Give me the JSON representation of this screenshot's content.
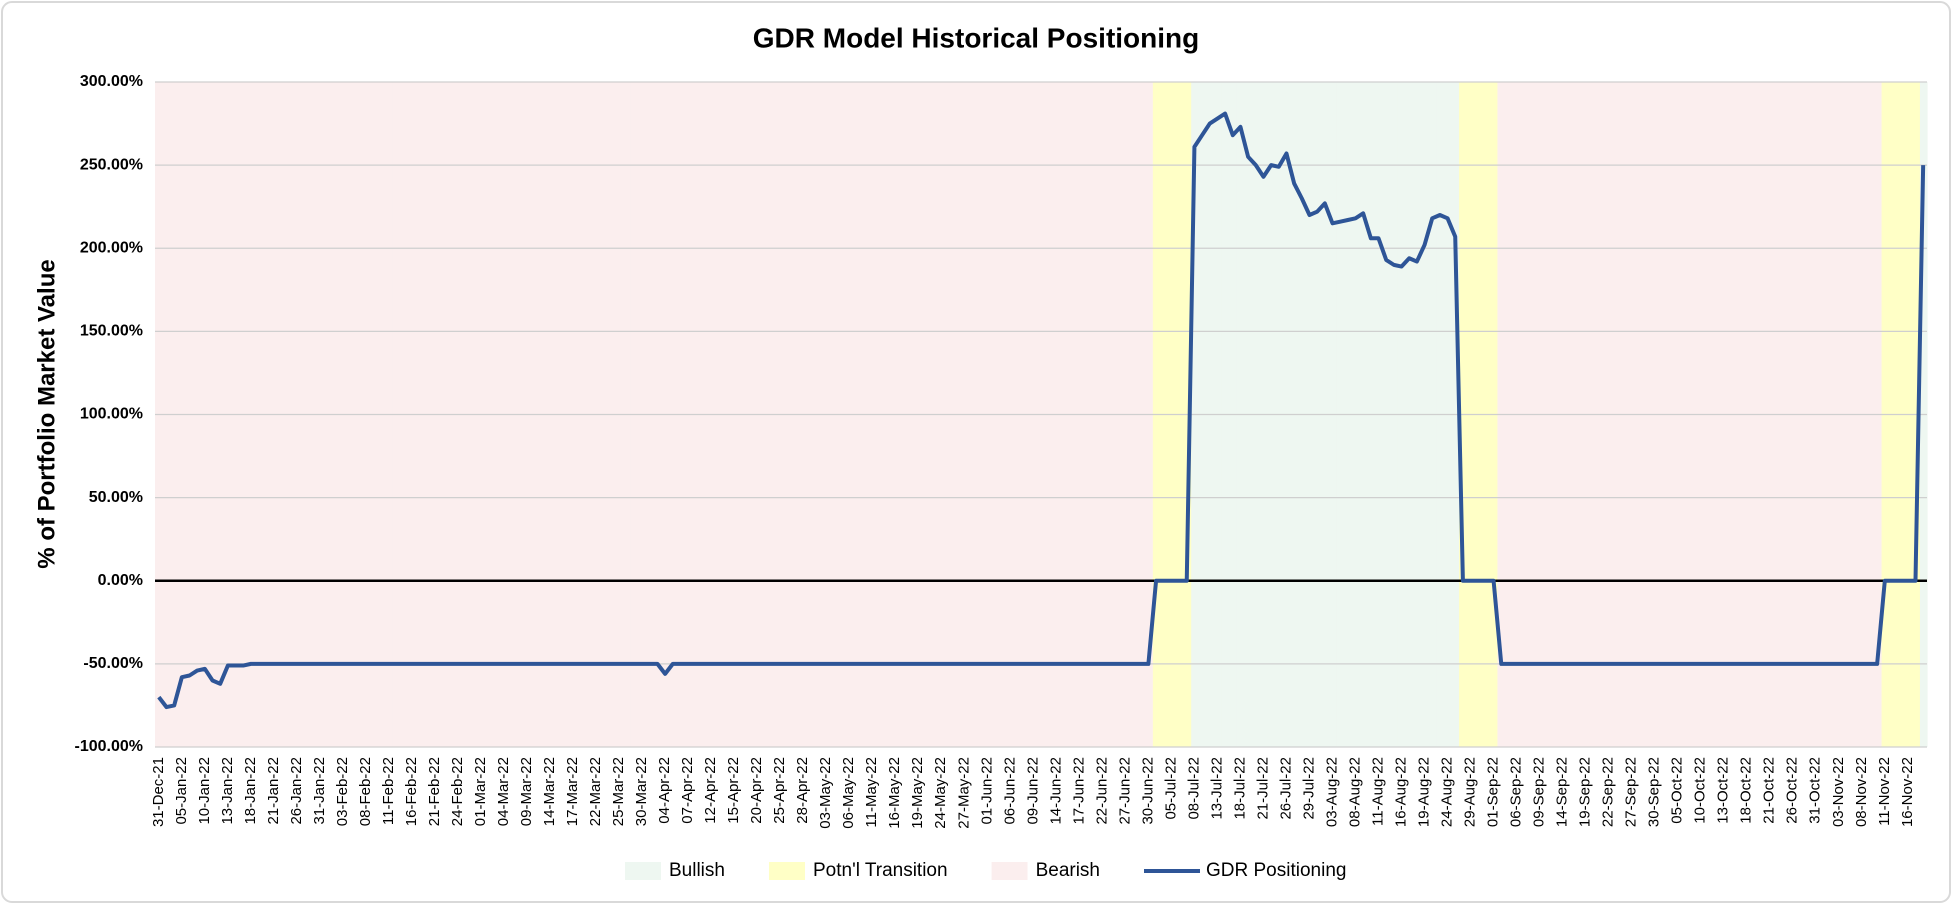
{
  "chart_data": {
    "type": "combo",
    "title": "GDR Model Historical Positioning",
    "y_label": "% of Portfolio Market Value",
    "ylim": [
      -100,
      300
    ],
    "yticks": [
      {
        "value": -100,
        "label": "-100.00%"
      },
      {
        "value": -50,
        "label": "-50.00%"
      },
      {
        "value": 0,
        "label": "0.00%"
      },
      {
        "value": 50,
        "label": "50.00%"
      },
      {
        "value": 100,
        "label": "100.00%"
      },
      {
        "value": 150,
        "label": "150.00%"
      },
      {
        "value": 200,
        "label": "200.00%"
      },
      {
        "value": 250,
        "label": "250.00%"
      },
      {
        "value": 300,
        "label": "300.00%"
      }
    ],
    "grid": true,
    "legend": "bottom",
    "categories": [
      "31-Dec-21",
      null,
      null,
      "05-Jan-22",
      null,
      null,
      "10-Jan-22",
      null,
      null,
      "13-Jan-22",
      null,
      null,
      "18-Jan-22",
      null,
      null,
      "21-Jan-22",
      null,
      null,
      "26-Jan-22",
      null,
      null,
      "31-Jan-22",
      null,
      null,
      "03-Feb-22",
      null,
      null,
      "08-Feb-22",
      null,
      null,
      "11-Feb-22",
      null,
      null,
      "16-Feb-22",
      null,
      null,
      "21-Feb-22",
      null,
      null,
      "24-Feb-22",
      null,
      null,
      "01-Mar-22",
      null,
      null,
      "04-Mar-22",
      null,
      null,
      "09-Mar-22",
      null,
      null,
      "14-Mar-22",
      null,
      null,
      "17-Mar-22",
      null,
      null,
      "22-Mar-22",
      null,
      null,
      "25-Mar-22",
      null,
      null,
      "30-Mar-22",
      null,
      null,
      "04-Apr-22",
      null,
      null,
      "07-Apr-22",
      null,
      null,
      "12-Apr-22",
      null,
      null,
      "15-Apr-22",
      null,
      null,
      "20-Apr-22",
      null,
      null,
      "25-Apr-22",
      null,
      null,
      "28-Apr-22",
      null,
      null,
      "03-May-22",
      null,
      null,
      "06-May-22",
      null,
      null,
      "11-May-22",
      null,
      null,
      "16-May-22",
      null,
      null,
      "19-May-22",
      null,
      null,
      "24-May-22",
      null,
      null,
      "27-May-22",
      null,
      null,
      "01-Jun-22",
      null,
      null,
      "06-Jun-22",
      null,
      null,
      "09-Jun-22",
      null,
      null,
      "14-Jun-22",
      null,
      null,
      "17-Jun-22",
      null,
      null,
      "22-Jun-22",
      null,
      null,
      "27-Jun-22",
      null,
      null,
      "30-Jun-22",
      null,
      null,
      "05-Jul-22",
      null,
      null,
      "08-Jul-22",
      null,
      null,
      "13-Jul-22",
      null,
      null,
      "18-Jul-22",
      null,
      null,
      "21-Jul-22",
      null,
      null,
      "26-Jul-22",
      null,
      null,
      "29-Jul-22",
      null,
      null,
      "03-Aug-22",
      null,
      null,
      "08-Aug-22",
      null,
      null,
      "11-Aug-22",
      null,
      null,
      "16-Aug-22",
      null,
      null,
      "19-Aug-22",
      null,
      null,
      "24-Aug-22",
      null,
      null,
      "29-Aug-22",
      null,
      null,
      "01-Sep-22",
      null,
      null,
      "06-Sep-22",
      null,
      null,
      "09-Sep-22",
      null,
      null,
      "14-Sep-22",
      null,
      null,
      "19-Sep-22",
      null,
      null,
      "22-Sep-22",
      null,
      null,
      "27-Sep-22",
      null,
      null,
      "30-Sep-22",
      null,
      null,
      "05-Oct-22",
      null,
      null,
      "10-Oct-22",
      null,
      null,
      "13-Oct-22",
      null,
      null,
      "18-Oct-22",
      null,
      null,
      "21-Oct-22",
      null,
      null,
      "26-Oct-22",
      null,
      null,
      "31-Oct-22",
      null,
      null,
      "03-Nov-22",
      null,
      null,
      "08-Nov-22",
      null,
      null,
      "11-Nov-22",
      null,
      null,
      "16-Nov-22",
      null,
      null
    ],
    "series": [
      {
        "name": "Bullish",
        "type": "column",
        "color": "#eef7f1",
        "values": [
          null,
          null,
          null,
          null,
          null,
          null,
          null,
          null,
          null,
          null,
          null,
          null,
          null,
          null,
          null,
          null,
          null,
          null,
          null,
          null,
          null,
          null,
          null,
          null,
          null,
          null,
          null,
          null,
          null,
          null,
          null,
          null,
          null,
          null,
          null,
          null,
          null,
          null,
          null,
          null,
          null,
          null,
          null,
          null,
          null,
          null,
          null,
          null,
          null,
          null,
          null,
          null,
          null,
          null,
          null,
          null,
          null,
          null,
          null,
          null,
          null,
          null,
          null,
          null,
          null,
          null,
          null,
          null,
          null,
          null,
          null,
          null,
          null,
          null,
          null,
          null,
          null,
          null,
          null,
          null,
          null,
          null,
          null,
          null,
          null,
          null,
          null,
          null,
          null,
          null,
          null,
          null,
          null,
          null,
          null,
          null,
          null,
          null,
          null,
          null,
          null,
          null,
          null,
          null,
          null,
          null,
          null,
          null,
          null,
          null,
          null,
          null,
          null,
          null,
          null,
          null,
          null,
          null,
          null,
          null,
          null,
          null,
          null,
          null,
          null,
          null,
          null,
          null,
          null,
          null,
          null,
          null,
          null,
          null,
          null,
          300,
          300,
          300,
          300,
          300,
          300,
          300,
          300,
          300,
          300,
          300,
          300,
          300,
          300,
          300,
          300,
          300,
          300,
          300,
          300,
          300,
          300,
          300,
          300,
          300,
          300,
          300,
          300,
          300,
          300,
          300,
          300,
          300,
          300,
          300,
          null,
          null,
          null,
          null,
          null,
          null,
          null,
          null,
          null,
          null,
          null,
          null,
          null,
          null,
          null,
          null,
          null,
          null,
          null,
          null,
          null,
          null,
          null,
          null,
          null,
          null,
          null,
          null,
          null,
          null,
          null,
          null,
          null,
          null,
          null,
          null,
          null,
          null,
          null,
          null,
          null,
          null,
          null,
          null,
          null,
          null,
          null,
          null,
          null,
          null,
          null,
          null,
          null,
          null,
          null,
          null,
          null,
          null,
          null,
          null,
          300
        ]
      },
      {
        "name": "Potn'l Transition",
        "type": "column",
        "color": "#ffffc6",
        "values": [
          null,
          null,
          null,
          null,
          null,
          null,
          null,
          null,
          null,
          null,
          null,
          null,
          null,
          null,
          null,
          null,
          null,
          null,
          null,
          null,
          null,
          null,
          null,
          null,
          null,
          null,
          null,
          null,
          null,
          null,
          null,
          null,
          null,
          null,
          null,
          null,
          null,
          null,
          null,
          null,
          null,
          null,
          null,
          null,
          null,
          null,
          null,
          null,
          null,
          null,
          null,
          null,
          null,
          null,
          null,
          null,
          null,
          null,
          null,
          null,
          null,
          null,
          null,
          null,
          null,
          null,
          null,
          null,
          null,
          null,
          null,
          null,
          null,
          null,
          null,
          null,
          null,
          null,
          null,
          null,
          null,
          null,
          null,
          null,
          null,
          null,
          null,
          null,
          null,
          null,
          null,
          null,
          null,
          null,
          null,
          null,
          null,
          null,
          null,
          null,
          null,
          null,
          null,
          null,
          null,
          null,
          null,
          null,
          null,
          null,
          null,
          null,
          null,
          null,
          null,
          null,
          null,
          null,
          null,
          null,
          null,
          null,
          null,
          null,
          null,
          null,
          null,
          null,
          null,
          null,
          300,
          300,
          300,
          300,
          300,
          null,
          null,
          null,
          null,
          null,
          null,
          null,
          null,
          null,
          null,
          null,
          null,
          null,
          null,
          null,
          null,
          null,
          null,
          null,
          null,
          null,
          null,
          null,
          null,
          null,
          null,
          null,
          null,
          null,
          null,
          null,
          null,
          null,
          null,
          null,
          300,
          300,
          300,
          300,
          300,
          null,
          null,
          null,
          null,
          null,
          null,
          null,
          null,
          null,
          null,
          null,
          null,
          null,
          null,
          null,
          null,
          null,
          null,
          null,
          null,
          null,
          null,
          null,
          null,
          null,
          null,
          null,
          null,
          null,
          null,
          null,
          null,
          null,
          null,
          null,
          null,
          null,
          null,
          null,
          null,
          null,
          null,
          null,
          null,
          null,
          null,
          null,
          null,
          null,
          null,
          300,
          300,
          300,
          300,
          300,
          null
        ]
      },
      {
        "name": "Bearish",
        "type": "column",
        "color": "#fbeeee",
        "values": [
          300,
          300,
          300,
          300,
          300,
          300,
          300,
          300,
          300,
          300,
          300,
          300,
          300,
          300,
          300,
          300,
          300,
          300,
          300,
          300,
          300,
          300,
          300,
          300,
          300,
          300,
          300,
          300,
          300,
          300,
          300,
          300,
          300,
          300,
          300,
          300,
          300,
          300,
          300,
          300,
          300,
          300,
          300,
          300,
          300,
          300,
          300,
          300,
          300,
          300,
          300,
          300,
          300,
          300,
          300,
          300,
          300,
          300,
          300,
          300,
          300,
          300,
          300,
          300,
          300,
          300,
          300,
          300,
          300,
          300,
          300,
          300,
          300,
          300,
          300,
          300,
          300,
          300,
          300,
          300,
          300,
          300,
          300,
          300,
          300,
          300,
          300,
          300,
          300,
          300,
          300,
          300,
          300,
          300,
          300,
          300,
          300,
          300,
          300,
          300,
          300,
          300,
          300,
          300,
          300,
          300,
          300,
          300,
          300,
          300,
          300,
          300,
          300,
          300,
          300,
          300,
          300,
          300,
          300,
          300,
          300,
          300,
          300,
          300,
          300,
          300,
          300,
          300,
          300,
          300,
          null,
          null,
          null,
          null,
          null,
          null,
          null,
          null,
          null,
          null,
          null,
          null,
          null,
          null,
          null,
          null,
          null,
          null,
          null,
          null,
          null,
          null,
          null,
          null,
          null,
          null,
          null,
          null,
          null,
          null,
          null,
          null,
          null,
          null,
          null,
          null,
          null,
          null,
          null,
          null,
          null,
          null,
          null,
          null,
          null,
          300,
          300,
          300,
          300,
          300,
          300,
          300,
          300,
          300,
          300,
          300,
          300,
          300,
          300,
          300,
          300,
          300,
          300,
          300,
          300,
          300,
          300,
          300,
          300,
          300,
          300,
          300,
          300,
          300,
          300,
          300,
          300,
          300,
          300,
          300,
          300,
          300,
          300,
          300,
          300,
          300,
          300,
          300,
          300,
          300,
          300,
          300,
          300,
          300,
          300,
          null,
          null,
          null,
          null,
          null,
          null
        ]
      },
      {
        "name": "GDR Positioning",
        "type": "line",
        "color": "#2e5597",
        "values": [
          -70,
          -76,
          -75,
          -58,
          -57,
          -54,
          -53,
          -60,
          -62,
          -51,
          -51,
          -51,
          -50,
          -50,
          -50,
          -50,
          -50,
          -50,
          -50,
          -50,
          -50,
          -50,
          -50,
          -50,
          -50,
          -50,
          -50,
          -50,
          -50,
          -50,
          -50,
          -50,
          -50,
          -50,
          -50,
          -50,
          -50,
          -50,
          -50,
          -50,
          -50,
          -50,
          -50,
          -50,
          -50,
          -50,
          -50,
          -50,
          -50,
          -50,
          -50,
          -50,
          -50,
          -50,
          -50,
          -50,
          -50,
          -50,
          -50,
          -50,
          -50,
          -50,
          -50,
          -50,
          -50,
          -50,
          -56,
          -50,
          -50,
          -50,
          -50,
          -50,
          -50,
          -50,
          -50,
          -50,
          -50,
          -50,
          -50,
          -50,
          -50,
          -50,
          -50,
          -50,
          -50,
          -50,
          -50,
          -50,
          -50,
          -50,
          -50,
          -50,
          -50,
          -50,
          -50,
          -50,
          -50,
          -50,
          -50,
          -50,
          -50,
          -50,
          -50,
          -50,
          -50,
          -50,
          -50,
          -50,
          -50,
          -50,
          -50,
          -50,
          -50,
          -50,
          -50,
          -50,
          -50,
          -50,
          -50,
          -50,
          -50,
          -50,
          -50,
          -50,
          -50,
          -50,
          -50,
          -50,
          -50,
          -50,
          0,
          0,
          0,
          0,
          0,
          261,
          268,
          275,
          278,
          281,
          268,
          273,
          255,
          250,
          243,
          250,
          249,
          257,
          239,
          230,
          220,
          222,
          227,
          215,
          216,
          217,
          218,
          221,
          206,
          206,
          193,
          190,
          189,
          194,
          192,
          202,
          218,
          220,
          218,
          207,
          0,
          0,
          0,
          0,
          0,
          -50,
          -50,
          -50,
          -50,
          -50,
          -50,
          -50,
          -50,
          -50,
          -50,
          -50,
          -50,
          -50,
          -50,
          -50,
          -50,
          -50,
          -50,
          -50,
          -50,
          -50,
          -50,
          -50,
          -50,
          -50,
          -50,
          -50,
          -50,
          -50,
          -50,
          -50,
          -50,
          -50,
          -50,
          -50,
          -50,
          -50,
          -50,
          -50,
          -50,
          -50,
          -50,
          -50,
          -50,
          -50,
          -50,
          -50,
          -50,
          -50,
          -50,
          0,
          0,
          0,
          0,
          0,
          250
        ]
      }
    ]
  }
}
